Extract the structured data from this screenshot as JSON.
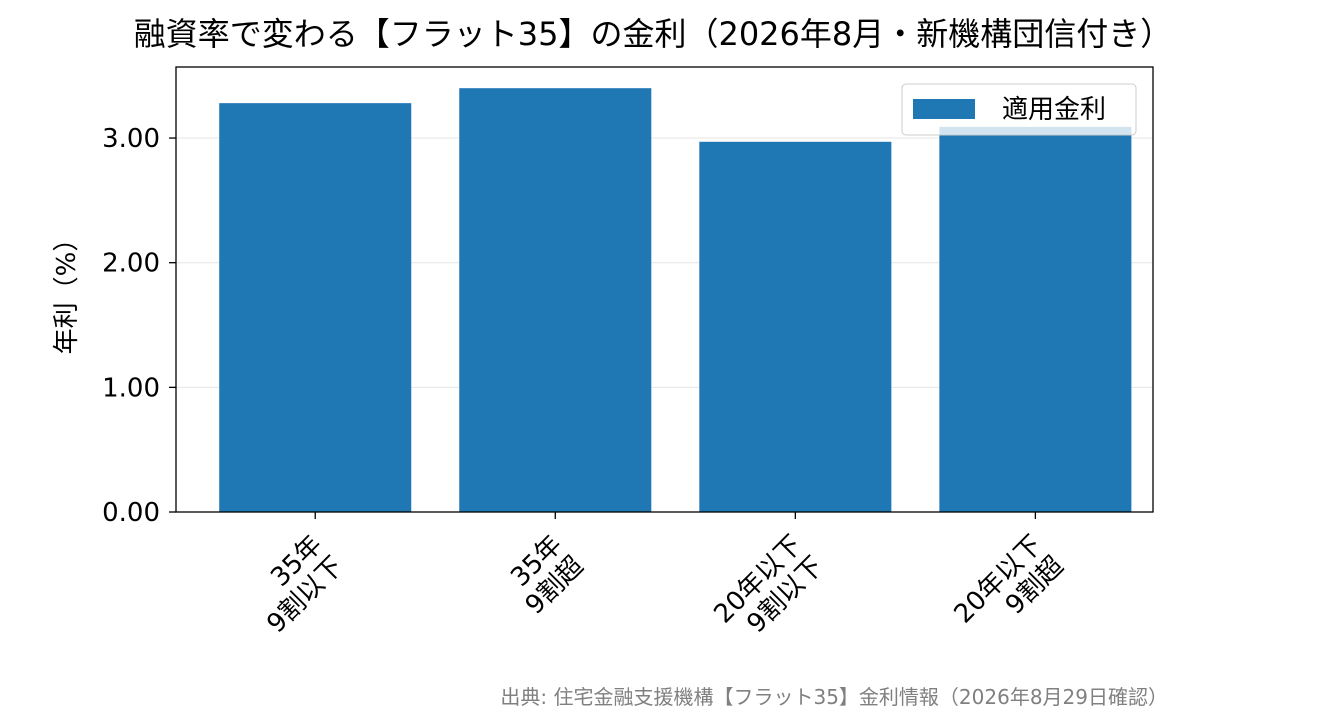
{
  "chart_data": {
    "type": "bar",
    "title": "融資率で変わる【フラット35】の金利（2026年8月・新機構団信付き）",
    "ylabel": "年利（%）",
    "xlabel": "",
    "categories": [
      [
        "35年",
        "9割以下"
      ],
      [
        "35年",
        "9割超"
      ],
      [
        "20年以下",
        "9割以下"
      ],
      [
        "20年以下",
        "9割超"
      ]
    ],
    "series": [
      {
        "name": "適用金利",
        "color": "#1f77b4",
        "values": [
          3.28,
          3.4,
          2.97,
          3.09
        ]
      }
    ],
    "ylim": [
      0,
      3.57
    ],
    "yticks": [
      "0.00",
      "1.00",
      "2.00",
      "3.00"
    ],
    "grid": true,
    "legend": "top-right",
    "source": "出典: 住宅金融支援機構【フラット35】金利情報（2026年8月29日確認）"
  }
}
